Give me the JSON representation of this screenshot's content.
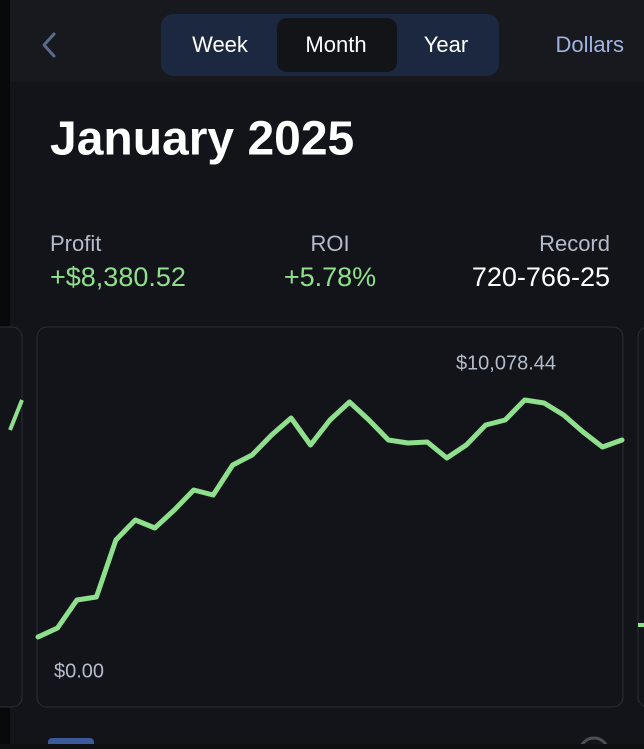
{
  "header": {
    "tabs": [
      "Week",
      "Month",
      "Year"
    ],
    "selected_tab": 1,
    "unit_toggle": "Dollars"
  },
  "title": "January 2025",
  "stats": [
    {
      "label": "Profit",
      "value": "+$8,380.52"
    },
    {
      "label": "ROI",
      "value": "+5.78%"
    },
    {
      "label": "Record",
      "value": "720-766-25"
    }
  ],
  "chart_data": {
    "type": "line",
    "color": "#8fe08c",
    "values": [
      126,
      504,
      1680,
      1806,
      4200,
      5040,
      4704,
      5460,
      6300,
      6090,
      7350,
      7770,
      8610,
      9324,
      8190,
      9240,
      9996,
      9240,
      8400,
      8274,
      8316,
      7644,
      8190,
      9030,
      9240,
      10078.44,
      9954,
      9450,
      8736,
      8106,
      8400
    ],
    "ylim": [
      0,
      10078.44
    ],
    "yticks": [
      {
        "value": 0,
        "label": "$0.00"
      },
      {
        "value": 10078.44,
        "label": "$10,078.44"
      }
    ]
  }
}
